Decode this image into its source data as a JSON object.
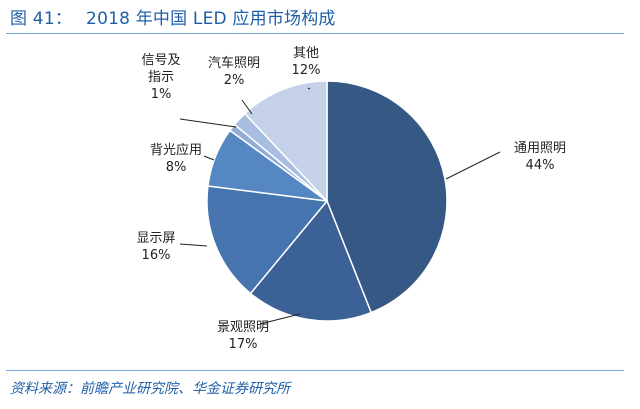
{
  "header": {
    "figure_label": "图 41：",
    "figure_title": "2018 年中国 LED 应用市场构成"
  },
  "footer": {
    "source": "资料来源：前瞻产业研究院、华金证券研究所"
  },
  "chart_data": {
    "type": "pie",
    "title": "2018 年中国 LED 应用市场构成",
    "slices": [
      {
        "name": "通用照明",
        "value": 44,
        "value_label": "44%",
        "color": "#355884"
      },
      {
        "name": "景观照明",
        "value": 17,
        "value_label": "17%",
        "color": "#3b6196"
      },
      {
        "name": "显示屏",
        "value": 16,
        "value_label": "16%",
        "color": "#4574ae"
      },
      {
        "name": "背光应用",
        "value": 8,
        "value_label": "8%",
        "color": "#5587c2"
      },
      {
        "name": "信号及指示",
        "value": 1,
        "value_label": "1%",
        "color": "#91add6"
      },
      {
        "name": "汽车照明",
        "value": 2,
        "value_label": "2%",
        "color": "#a8bde0"
      },
      {
        "name": "其他",
        "value": 12,
        "value_label": "12%",
        "color": "#c5d1e8"
      }
    ],
    "start_angle_deg": 0,
    "direction": "clockwise"
  }
}
